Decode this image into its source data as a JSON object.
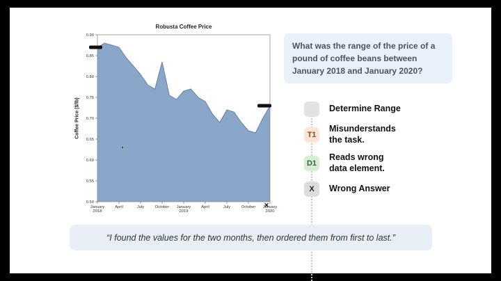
{
  "chart_data": {
    "type": "area",
    "title": "Robusta Coffee Price",
    "ylabel": "Coffee Price ($/lb)",
    "ylim": [
      0.5,
      0.9
    ],
    "yticks": [
      0.5,
      0.55,
      0.6,
      0.65,
      0.7,
      0.75,
      0.8,
      0.85,
      0.9
    ],
    "x_label_indices": [
      0,
      3,
      6,
      9,
      12,
      15,
      18,
      21,
      24
    ],
    "x_labels": [
      [
        "January",
        "2018"
      ],
      [
        "April"
      ],
      [
        "July"
      ],
      [
        "October"
      ],
      [
        "January",
        "2019"
      ],
      [
        "April"
      ],
      [
        "July"
      ],
      [
        "October"
      ],
      [
        "January",
        "2020"
      ]
    ],
    "x_unit": "month",
    "values": [
      0.87,
      0.88,
      0.875,
      0.87,
      0.845,
      0.825,
      0.805,
      0.78,
      0.77,
      0.835,
      0.755,
      0.745,
      0.765,
      0.77,
      0.75,
      0.74,
      0.71,
      0.69,
      0.72,
      0.715,
      0.69,
      0.67,
      0.665,
      0.7,
      0.73
    ],
    "area_color": "#8aa6c9",
    "line_color": "#5d83ad",
    "annotations": {
      "range_start_value": 0.87,
      "range_end_value": 0.73,
      "wrong_answer_mark": "✕"
    },
    "legend": "none",
    "grid": false
  },
  "question": {
    "text": "What was the range of the price of a pound of coffee beans between January 2018 and January 2020?"
  },
  "steps": [
    {
      "badge": "",
      "label_lines": [
        "Determine Range"
      ]
    },
    {
      "badge": "T1",
      "label_lines": [
        "Misunderstands",
        "the task."
      ]
    },
    {
      "badge": "D1",
      "label_lines": [
        "Reads wrong",
        "data element."
      ]
    },
    {
      "badge": "X",
      "label_lines": [
        "Wrong Answer"
      ]
    }
  ],
  "quote": {
    "text": "“I found the values for the two months, then ordered them from first to last.”"
  },
  "colors": {
    "question_box_bg": "#e9f1fa",
    "quote_bg": "#e9eff6",
    "badge_start_bg": "#e2e2e2",
    "badge_t1_bg": "#fbe5d6",
    "badge_t1_text": "#8a4a1f",
    "badge_d1_bg": "#d9ecd6",
    "badge_d1_text": "#2f6b33",
    "badge_x_bg": "#dddddd",
    "badge_x_text": "#222222"
  }
}
